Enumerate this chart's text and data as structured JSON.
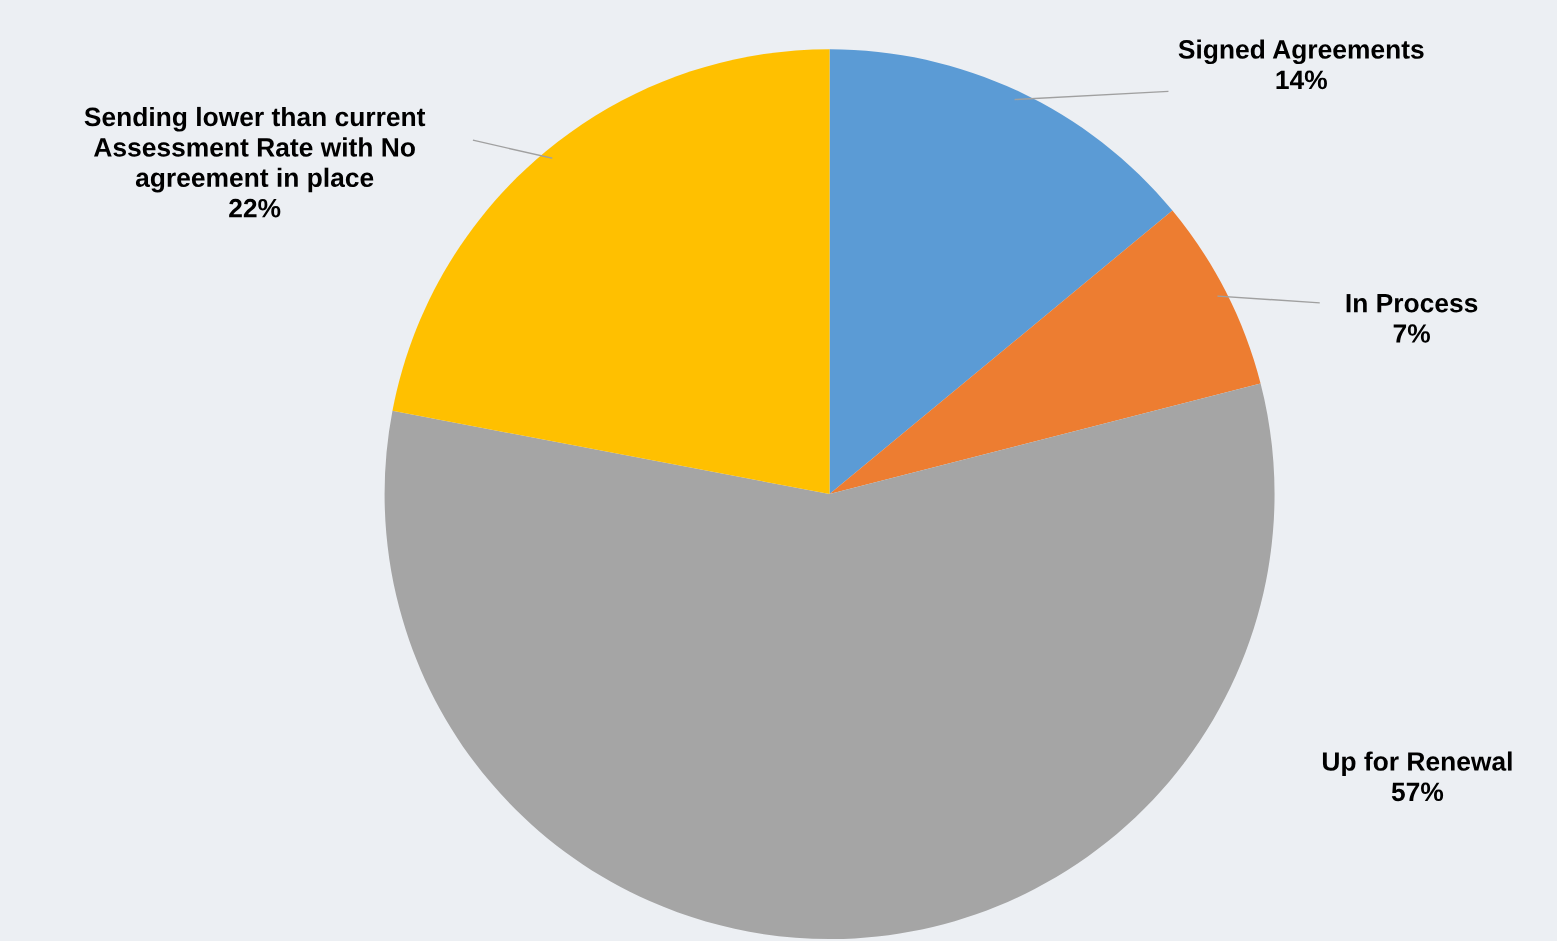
{
  "chart_data": {
    "type": "pie",
    "categories": [
      "Signed Agreements",
      "In Process",
      "Up for Renewal",
      "Sending lower than current\nAssessment Rate with No\nagreement in place"
    ],
    "values": [
      14,
      7,
      57,
      22
    ],
    "value_labels": [
      "14%",
      "7%",
      "57%",
      "22%"
    ],
    "colors": [
      "#5b9bd5",
      "#ed7d31",
      "#a5a5a5",
      "#ffc000"
    ],
    "legend": false
  }
}
